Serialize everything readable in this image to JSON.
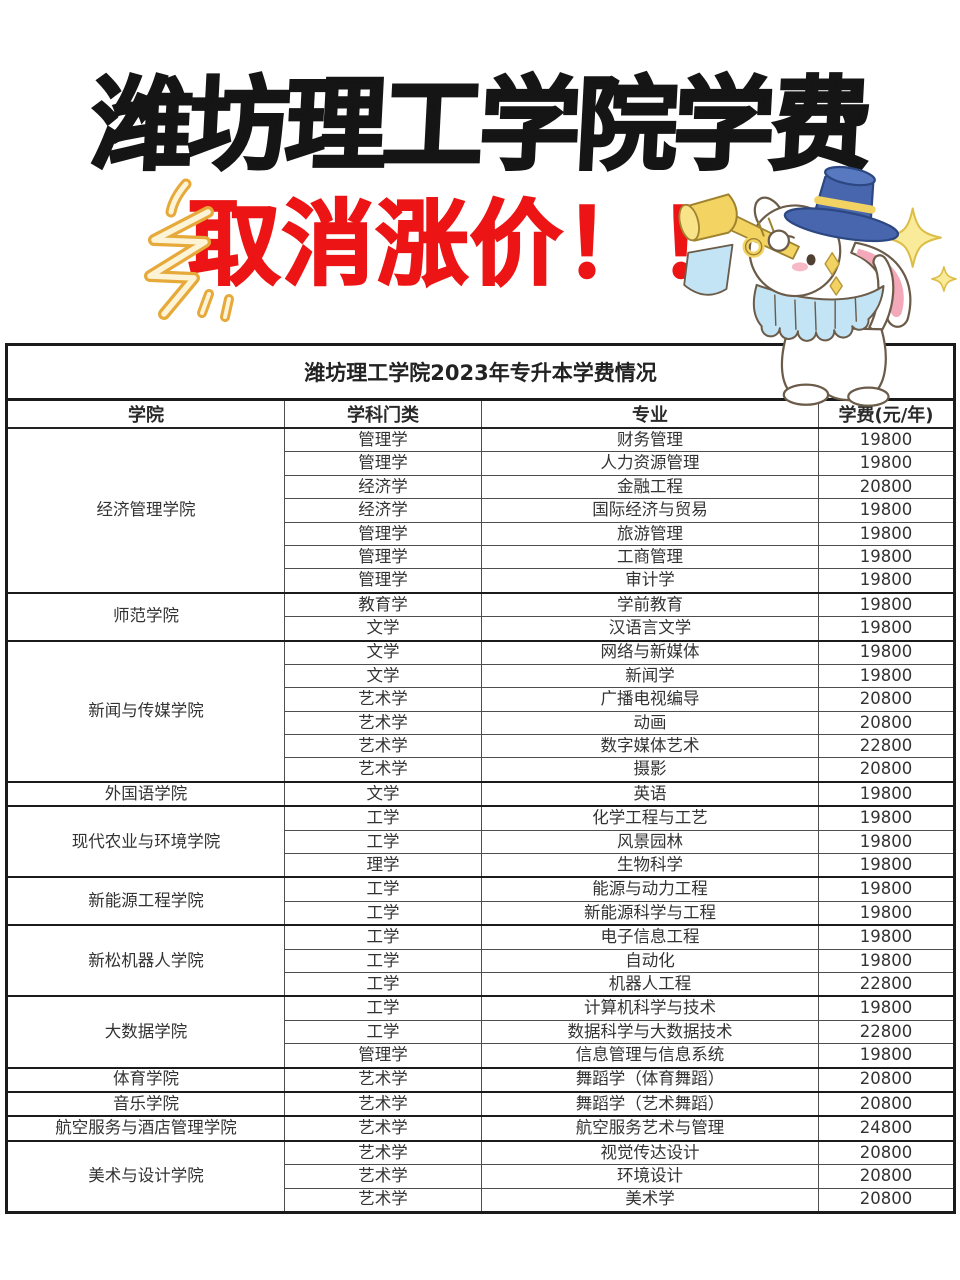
{
  "poster": {
    "title": "潍坊理工学院学费",
    "subtitle": "取消涨价！！"
  },
  "table": {
    "caption": "潍坊理工学院2023年专升本学费情况",
    "columns": [
      "学院",
      "学科门类",
      "专业",
      "学费(元/年)"
    ],
    "groups": [
      {
        "college": "经济管理学院",
        "rows": [
          [
            "管理学",
            "财务管理",
            "19800"
          ],
          [
            "管理学",
            "人力资源管理",
            "19800"
          ],
          [
            "经济学",
            "金融工程",
            "20800"
          ],
          [
            "经济学",
            "国际经济与贸易",
            "19800"
          ],
          [
            "管理学",
            "旅游管理",
            "19800"
          ],
          [
            "管理学",
            "工商管理",
            "19800"
          ],
          [
            "管理学",
            "审计学",
            "19800"
          ]
        ]
      },
      {
        "college": "师范学院",
        "rows": [
          [
            "教育学",
            "学前教育",
            "19800"
          ],
          [
            "文学",
            "汉语言文学",
            "19800"
          ]
        ]
      },
      {
        "college": "新闻与传媒学院",
        "rows": [
          [
            "文学",
            "网络与新媒体",
            "19800"
          ],
          [
            "文学",
            "新闻学",
            "19800"
          ],
          [
            "艺术学",
            "广播电视编导",
            "20800"
          ],
          [
            "艺术学",
            "动画",
            "20800"
          ],
          [
            "艺术学",
            "数字媒体艺术",
            "22800"
          ],
          [
            "艺术学",
            "摄影",
            "20800"
          ]
        ]
      },
      {
        "college": "外国语学院",
        "rows": [
          [
            "文学",
            "英语",
            "19800"
          ]
        ]
      },
      {
        "college": "现代农业与环境学院",
        "rows": [
          [
            "工学",
            "化学工程与工艺",
            "19800"
          ],
          [
            "工学",
            "风景园林",
            "19800"
          ],
          [
            "理学",
            "生物科学",
            "19800"
          ]
        ]
      },
      {
        "college": "新能源工程学院",
        "rows": [
          [
            "工学",
            "能源与动力工程",
            "19800"
          ],
          [
            "工学",
            "新能源科学与工程",
            "19800"
          ]
        ]
      },
      {
        "college": "新松机器人学院",
        "rows": [
          [
            "工学",
            "电子信息工程",
            "19800"
          ],
          [
            "工学",
            "自动化",
            "19800"
          ],
          [
            "工学",
            "机器人工程",
            "22800"
          ]
        ]
      },
      {
        "college": "大数据学院",
        "rows": [
          [
            "工学",
            "计算机科学与技术",
            "19800"
          ],
          [
            "工学",
            "数据科学与大数据技术",
            "22800"
          ],
          [
            "管理学",
            "信息管理与信息系统",
            "19800"
          ]
        ]
      },
      {
        "college": "体育学院",
        "rows": [
          [
            "艺术学",
            "舞蹈学（体育舞蹈）",
            "20800"
          ]
        ]
      },
      {
        "college": "音乐学院",
        "rows": [
          [
            "艺术学",
            "舞蹈学（艺术舞蹈）",
            "20800"
          ]
        ]
      },
      {
        "college": "航空服务与酒店管理学院",
        "rows": [
          [
            "艺术学",
            "航空服务艺术与管理",
            "24800"
          ]
        ]
      },
      {
        "college": "美术与设计学院",
        "rows": [
          [
            "艺术学",
            "视觉传达设计",
            "20800"
          ],
          [
            "艺术学",
            "环境设计",
            "20800"
          ],
          [
            "艺术学",
            "美术学",
            "20800"
          ]
        ]
      }
    ]
  },
  "icons": {
    "swoosh": "yellow-swoosh-doodle",
    "rabbit": "rabbit-trumpeter-illustration",
    "sparkle": "sparkle-icon"
  },
  "colors": {
    "title_black": "#151515",
    "accent_red": "#ec1414",
    "hat_blue": "#4766ae",
    "trumpet_yellow": "#f3d462",
    "collar_blue": "#c2e4f5",
    "ear_pink": "#f3a9b9",
    "doodle_yellow": "#e6a93a",
    "table_border_dark": "#1b1b1b",
    "table_border_light": "#4e4e4e"
  }
}
